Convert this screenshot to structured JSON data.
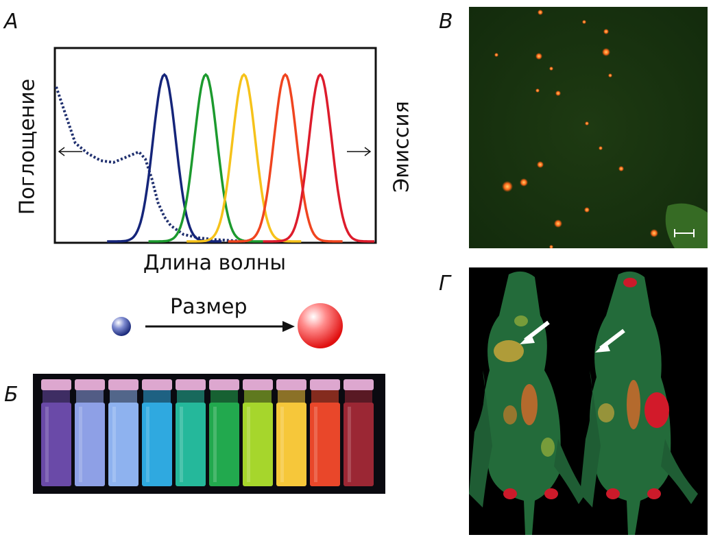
{
  "figure": {
    "panel_a": {
      "letter": "А",
      "ylabel_left": "Поглощение",
      "ylabel_right": "Эмиссия",
      "xlabel": "Длина волны",
      "size_label": "Размер"
    },
    "panel_b": {
      "letter": "Б"
    },
    "panel_c": {
      "letter": "В"
    },
    "panel_d": {
      "letter": "Г"
    }
  },
  "chart_data": {
    "type": "line",
    "title": "",
    "xlabel": "Длина волны",
    "ylabel": "Поглощение",
    "y2label": "Эмиссия",
    "x_ticks": [],
    "y_ticks": [],
    "xlim": [
      0,
      100
    ],
    "ylim": [
      0,
      1
    ],
    "grid": false,
    "legend": "none",
    "absorption": {
      "style": "dotted",
      "color": "#1f2f6e",
      "x": [
        0,
        3,
        6,
        10,
        14,
        18,
        22,
        26,
        28,
        30,
        32,
        34,
        36,
        40,
        45,
        50,
        55,
        60
      ],
      "y": [
        0.88,
        0.72,
        0.56,
        0.5,
        0.46,
        0.45,
        0.48,
        0.51,
        0.47,
        0.36,
        0.22,
        0.14,
        0.09,
        0.04,
        0.02,
        0.01,
        0.005,
        0
      ]
    },
    "emission_peaks": [
      {
        "center": 34,
        "color": "#15257a"
      },
      {
        "center": 47,
        "color": "#1c9a2e"
      },
      {
        "center": 59,
        "color": "#f6c21a"
      },
      {
        "center": 72,
        "color": "#f0451f"
      },
      {
        "center": 83,
        "color": "#dd1c2c"
      }
    ],
    "emission_peak_height": 0.95,
    "vial_colors": [
      "#6a4aa8",
      "#8ea0e6",
      "#8eb2ef",
      "#2fa9e0",
      "#25b89b",
      "#22a94e",
      "#a6d62c",
      "#f6c73a",
      "#e9472a",
      "#9b2734"
    ]
  }
}
